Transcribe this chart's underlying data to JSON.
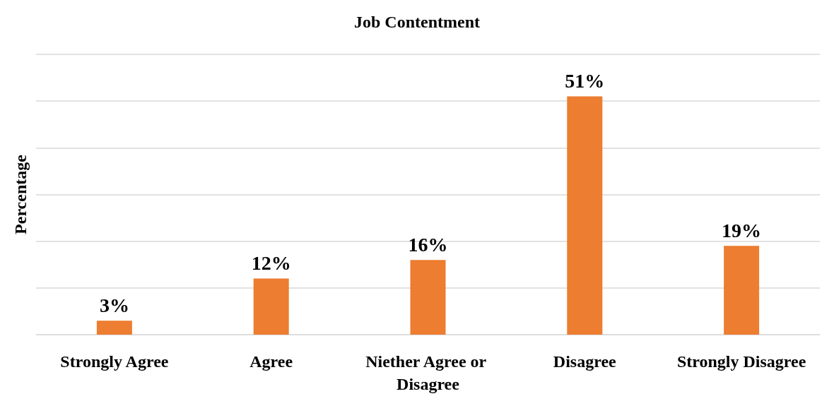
{
  "chart_data": {
    "type": "bar",
    "title": "Job Contentment",
    "ylabel": "Percentage",
    "categories": [
      "Strongly Agree",
      "Agree",
      "Niether Agree or Disagree",
      "Disagree",
      "Strongly Disagree"
    ],
    "values": [
      3,
      12,
      16,
      51,
      19
    ],
    "value_labels": [
      "3%",
      "12%",
      "16%",
      "51%",
      "19%"
    ],
    "color": "#ed7d31",
    "ylim": [
      0,
      60
    ],
    "yticks": [
      {
        "value": 0,
        "label": null
      },
      {
        "value": 10,
        "label": null
      },
      {
        "value": 20,
        "label": null
      },
      {
        "value": 30,
        "label": null
      },
      {
        "value": 40,
        "label": null
      },
      {
        "value": 50,
        "label": null
      },
      {
        "value": 60,
        "label": null
      }
    ],
    "grid": "y",
    "tick_labels": "x"
  }
}
